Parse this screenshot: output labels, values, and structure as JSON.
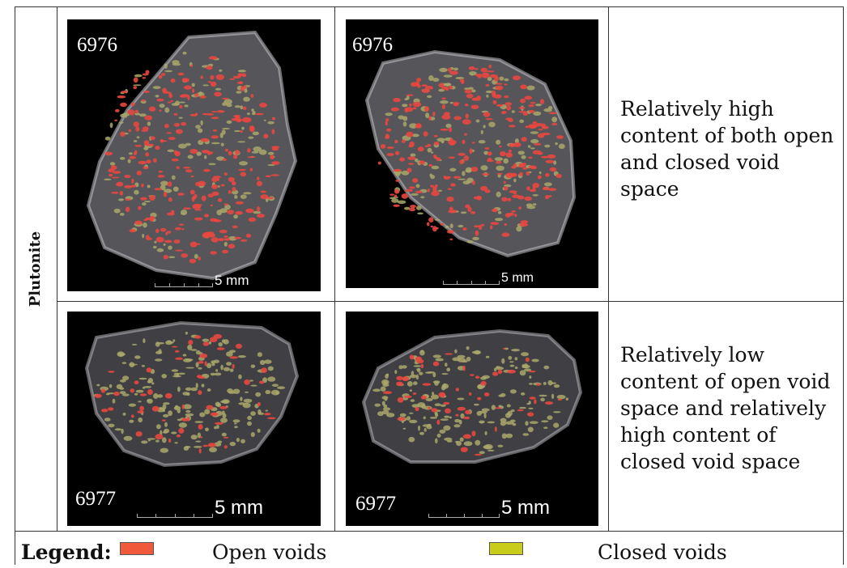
{
  "row_label": "Plutonite",
  "panels": [
    {
      "sample_id": "6976",
      "scale_label": "5 mm"
    },
    {
      "sample_id": "6976",
      "scale_label": "5 mm"
    },
    {
      "sample_id": "6977",
      "scale_label": "5 mm"
    },
    {
      "sample_id": "6977",
      "scale_label": "5 mm"
    }
  ],
  "descriptions": [
    [
      "Relatively high",
      "content of both open",
      "and closed void",
      "space"
    ],
    [
      "Relatively low",
      "content of open void",
      "space and relatively",
      "high content of",
      "closed void space"
    ]
  ],
  "legend": {
    "title": "Legend:",
    "items": [
      {
        "label": "Open voids",
        "color": "#f05a3a"
      },
      {
        "label": "Closed voids",
        "color": "#c9cc1a"
      }
    ]
  },
  "colors": {
    "open_void": "#e8473f",
    "closed_void": "#a9a768",
    "rock_body": "#4a4a4e",
    "rock_edge": "#bdbdc4"
  }
}
